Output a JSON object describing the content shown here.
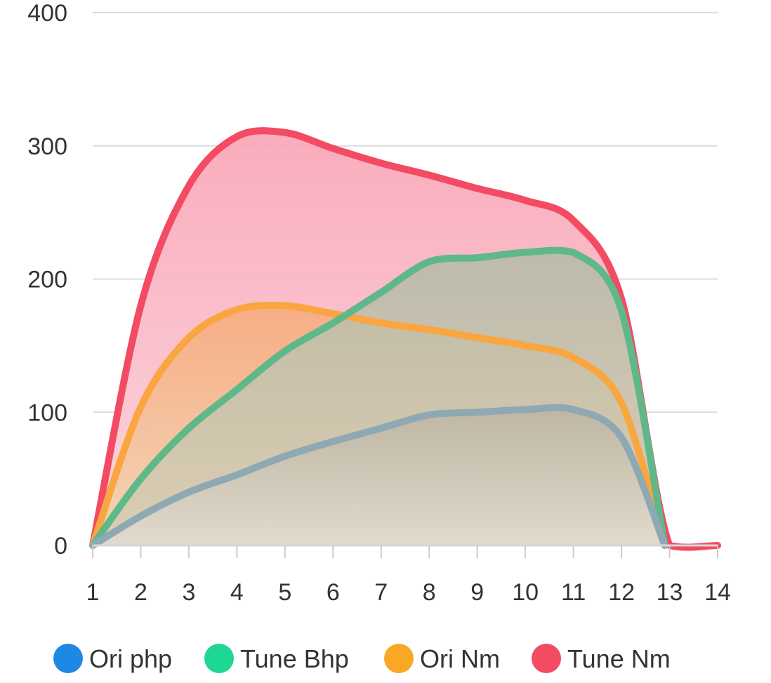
{
  "chart_data": {
    "type": "area",
    "x": [
      1,
      2,
      3,
      4,
      5,
      6,
      7,
      8,
      9,
      10,
      11,
      12,
      13,
      14
    ],
    "xlim": [
      1,
      14
    ],
    "ylim": [
      0,
      400
    ],
    "yticks": [
      0,
      100,
      200,
      300,
      400
    ],
    "xticks": [
      1,
      2,
      3,
      4,
      5,
      6,
      7,
      8,
      9,
      10,
      11,
      12,
      13,
      14
    ],
    "title": "",
    "xlabel": "",
    "ylabel": "",
    "grid": "horizontal",
    "legend_position": "bottom",
    "series": [
      {
        "name": "Ori php",
        "color": "#1e88e5",
        "line_color": "#8fa9b4",
        "points": [
          [
            1,
            0
          ],
          [
            2,
            22
          ],
          [
            3,
            40
          ],
          [
            4,
            53
          ],
          [
            5,
            67
          ],
          [
            6,
            78
          ],
          [
            7,
            88
          ],
          [
            8,
            98
          ],
          [
            9,
            100
          ],
          [
            10,
            102
          ],
          [
            11,
            102
          ],
          [
            12,
            81
          ],
          [
            12.9,
            0
          ]
        ]
      },
      {
        "name": "Tune Bhp",
        "color": "#1ed793",
        "line_color": "#5fb88a",
        "points": [
          [
            1,
            0
          ],
          [
            2,
            50
          ],
          [
            3,
            88
          ],
          [
            4,
            117
          ],
          [
            5,
            146
          ],
          [
            6,
            167
          ],
          [
            7,
            190
          ],
          [
            8,
            213
          ],
          [
            9,
            216
          ],
          [
            10,
            220
          ],
          [
            11,
            220
          ],
          [
            12,
            176
          ],
          [
            12.9,
            0
          ]
        ]
      },
      {
        "name": "Ori Nm",
        "color": "#f9a825",
        "line_color": "#f9a640",
        "points": [
          [
            1,
            0
          ],
          [
            2,
            104
          ],
          [
            3,
            156
          ],
          [
            4,
            177
          ],
          [
            5,
            180
          ],
          [
            6,
            174
          ],
          [
            7,
            167
          ],
          [
            8,
            162
          ],
          [
            9,
            156
          ],
          [
            10,
            150
          ],
          [
            11,
            141
          ],
          [
            12,
            107
          ],
          [
            12.9,
            0
          ]
        ]
      },
      {
        "name": "Tune Nm",
        "color": "#f24b63",
        "line_color": "#f24b63",
        "points": [
          [
            1,
            0
          ],
          [
            2,
            180
          ],
          [
            3,
            270
          ],
          [
            4,
            307
          ],
          [
            5,
            310
          ],
          [
            6,
            298
          ],
          [
            7,
            287
          ],
          [
            8,
            278
          ],
          [
            9,
            268
          ],
          [
            10,
            259
          ],
          [
            11,
            244
          ],
          [
            12,
            185
          ],
          [
            13,
            0
          ],
          [
            14,
            0
          ]
        ]
      }
    ]
  }
}
